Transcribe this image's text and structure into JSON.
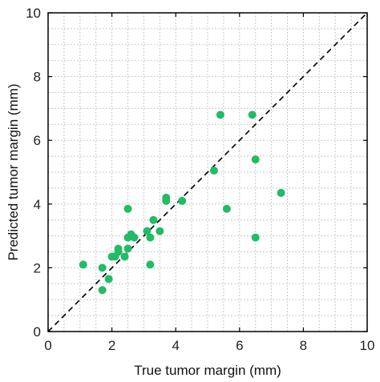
{
  "chart_data": {
    "type": "scatter",
    "title": "",
    "xlabel": "True tumor margin (mm)",
    "ylabel": "Predicted tumor margin (mm)",
    "xlim": [
      0,
      10
    ],
    "ylim": [
      0,
      10
    ],
    "xticks": [
      0,
      2,
      4,
      6,
      8,
      10
    ],
    "yticks": [
      0,
      2,
      4,
      6,
      8,
      10
    ],
    "minor_grid_step": 0.5,
    "grid": true,
    "reference_line": {
      "type": "identity",
      "style": "dashed",
      "color": "#000000"
    },
    "marker_color": "#22bb66",
    "points": [
      {
        "x": 1.1,
        "y": 2.1
      },
      {
        "x": 1.7,
        "y": 2.0
      },
      {
        "x": 1.7,
        "y": 1.3
      },
      {
        "x": 1.9,
        "y": 1.65
      },
      {
        "x": 2.0,
        "y": 2.35
      },
      {
        "x": 2.1,
        "y": 2.35
      },
      {
        "x": 2.2,
        "y": 2.5
      },
      {
        "x": 2.2,
        "y": 2.6
      },
      {
        "x": 2.4,
        "y": 2.35
      },
      {
        "x": 2.5,
        "y": 2.6
      },
      {
        "x": 2.5,
        "y": 2.95
      },
      {
        "x": 2.5,
        "y": 3.85
      },
      {
        "x": 2.6,
        "y": 3.05
      },
      {
        "x": 2.7,
        "y": 2.95
      },
      {
        "x": 3.1,
        "y": 3.15
      },
      {
        "x": 3.2,
        "y": 2.95
      },
      {
        "x": 3.2,
        "y": 2.1
      },
      {
        "x": 3.3,
        "y": 3.5
      },
      {
        "x": 3.5,
        "y": 3.15
      },
      {
        "x": 3.7,
        "y": 4.2
      },
      {
        "x": 3.7,
        "y": 4.1
      },
      {
        "x": 4.2,
        "y": 4.1
      },
      {
        "x": 5.2,
        "y": 5.05
      },
      {
        "x": 5.4,
        "y": 6.8
      },
      {
        "x": 5.6,
        "y": 3.85
      },
      {
        "x": 6.4,
        "y": 6.8
      },
      {
        "x": 6.5,
        "y": 5.4
      },
      {
        "x": 6.5,
        "y": 2.95
      },
      {
        "x": 7.3,
        "y": 4.35
      }
    ]
  }
}
